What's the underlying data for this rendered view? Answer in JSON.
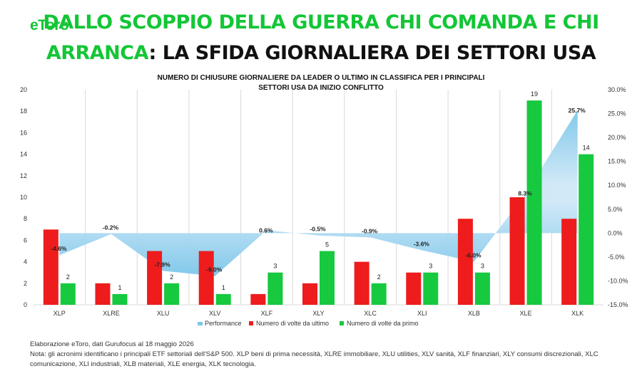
{
  "brand": {
    "logo_text": "eToro"
  },
  "header": {
    "title_line1": "DALLO SCOPPIO DELLA GUERRA CHI COMANDA E CHI",
    "title_line2_green": "ARRANCA",
    "title_line2_black": ": LA SFIDA GIORNALIERA DEI SETTORI USA",
    "subtitle": "NUMERO DI CHIUSURE GIORNALIERE DA LEADER O ULTIMO IN CLASSIFICA PER I PRINCIPALI SETTORI USA DA INIZIO CONFLITTO"
  },
  "footer": {
    "source": "Elaborazione eToro, dati Gurufocus al 18 maggio 2026",
    "note": "Nota: gli acronimi identificano i principali ETF settoriali dell'S&P 500. XLP beni di prima necessità, XLRE immobiliare, XLU utilities, XLV sanità, XLF finanziari, XLY consumi discrezionali, XLC comunicazione, XLI industriali, XLB materiali, XLE energia, XLK tecnologia."
  },
  "colors": {
    "brand_green": "#13c636",
    "bar_last": "#ee1c1c",
    "bar_first": "#17c93f",
    "area_top": "#cfe8f7",
    "area_mid": "#7cc6ea",
    "grid": "#d9d9d9"
  },
  "chart_data": {
    "type": "bar",
    "categories": [
      "XLP",
      "XLRE",
      "XLU",
      "XLV",
      "XLF",
      "XLY",
      "XLC",
      "XLI",
      "XLB",
      "XLE",
      "XLK"
    ],
    "series": [
      {
        "name": "Numero di volte da ultimo",
        "type": "bar",
        "axis": "left",
        "values": [
          7,
          2,
          5,
          5,
          1,
          2,
          4,
          3,
          8,
          10,
          8
        ]
      },
      {
        "name": "Numero di volte da primo",
        "type": "bar",
        "axis": "left",
        "values": [
          2,
          1,
          2,
          1,
          3,
          5,
          2,
          3,
          3,
          19,
          14
        ]
      },
      {
        "name": "Performance",
        "type": "area",
        "axis": "right",
        "values": [
          -4.6,
          -0.2,
          -7.9,
          -9.0,
          0.6,
          -0.5,
          -0.9,
          -3.6,
          -6.0,
          8.3,
          25.7
        ]
      }
    ],
    "data_labels_first": [
      "2",
      "1",
      "2",
      "1",
      "3",
      "5",
      "2",
      "3",
      "3",
      "19",
      "14"
    ],
    "data_labels_performance": [
      "-4.6%",
      "-0.2%",
      "-7.9%",
      "-9.0%",
      "0.6%",
      "-0.5%",
      "-0.9%",
      "-3.6%",
      "-6.0%",
      "8.3%",
      "25.7%"
    ],
    "left_axis": {
      "min": 0,
      "max": 20,
      "step": 2,
      "tick_labels": [
        "0",
        "2",
        "4",
        "6",
        "8",
        "10",
        "12",
        "14",
        "16",
        "18",
        "20"
      ]
    },
    "right_axis": {
      "min": -15,
      "max": 30,
      "step": 5,
      "tick_labels": [
        "-15.0%",
        "-10.0%",
        "-5.0%",
        "0.0%",
        "5.0%",
        "10.0%",
        "15.0%",
        "20.0%",
        "25.0%",
        "30.0%"
      ]
    },
    "legend": {
      "position": "bottom",
      "items": [
        "Performance",
        "Numero di volte da ultimo",
        "Numero di volte da primo"
      ]
    },
    "grid": "vertical"
  }
}
